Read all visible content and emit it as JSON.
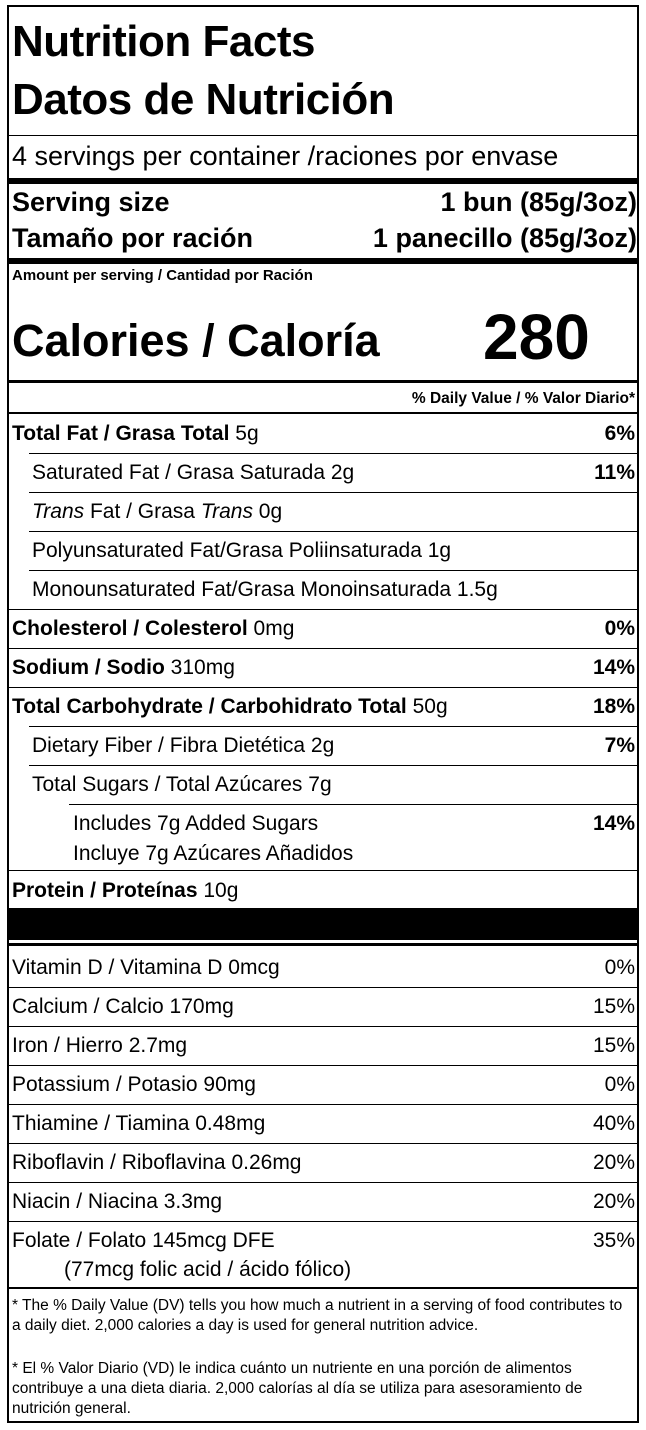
{
  "title_en": "Nutrition Facts",
  "title_es": "Datos de Nutrición",
  "servings": "4 servings per container /raciones por envase",
  "serving_size": {
    "label_en": "Serving size",
    "value_en": "1 bun (85g/3oz)",
    "label_es": "Tamaño por ración",
    "value_es": "1 panecillo (85g/3oz)"
  },
  "amount_per_serving": "Amount per serving / Cantidad por Ración",
  "calories": {
    "label": "Calories / Caloría",
    "value": "280"
  },
  "dv_header": "% Daily Value / % Valor  Diario*",
  "nutrients": {
    "total_fat": {
      "label": "Total Fat / Grasa Total",
      "amount": " 5g",
      "pct": "6%"
    },
    "saturated_fat": {
      "label": "Saturated Fat / Grasa Saturada 2g",
      "pct": "11%"
    },
    "trans_fat": {
      "trans1": "Trans",
      "mid": " Fat / Grasa ",
      "trans2": "Trans",
      "amount": " 0g"
    },
    "poly_fat": {
      "label": "Polyunsaturated Fat/Grasa Poliinsaturada 1g"
    },
    "mono_fat": {
      "label": "Monounsaturated Fat/Grasa Monoinsaturada 1.5g"
    },
    "cholesterol": {
      "label": "Cholesterol / Colesterol",
      "amount": " 0mg",
      "pct": "0%"
    },
    "sodium": {
      "label": "Sodium / Sodio",
      "amount": " 310mg",
      "pct": "14%"
    },
    "total_carb": {
      "label": "Total Carbohydrate / Carbohidrato Total",
      "amount": " 50g",
      "pct": "18%"
    },
    "fiber": {
      "label": "Dietary Fiber / Fibra Dietética 2g",
      "pct": "7%"
    },
    "total_sugars": {
      "label": "Total Sugars / Total Azúcares 7g"
    },
    "added_sugars": {
      "line1": "Includes 7g Added Sugars",
      "line2": "Incluye 7g Azúcares Añadidos",
      "pct": "14%"
    },
    "protein": {
      "label": "Protein / Proteínas",
      "amount": " 10g"
    }
  },
  "vitamins": [
    {
      "label": "Vitamin D / Vitamina D  0mcg",
      "pct": "0%"
    },
    {
      "label": "Calcium / Calcio 170mg",
      "pct": "15%"
    },
    {
      "label": "Iron / Hierro 2.7mg",
      "pct": "15%"
    },
    {
      "label": "Potassium / Potasio 90mg",
      "pct": "0%"
    },
    {
      "label": "Thiamine / Tiamina 0.48mg",
      "pct": "40%"
    },
    {
      "label": "Riboflavin / Riboflavina 0.26mg",
      "pct": "20%"
    },
    {
      "label": "Niacin / Niacina 3.3mg",
      "pct": "20%"
    }
  ],
  "folate": {
    "label": "Folate / Folato 145mcg DFE",
    "sub": "(77mcg folic acid / ácido fólico)",
    "pct": "35%"
  },
  "footnote_en": "* The % Daily Value (DV) tells you how much a nutrient in a serving of food contributes to a daily diet.  2,000 calories a day is used for general nutrition advice.",
  "footnote_es": "* El % Valor Diario (VD) le indica cuánto un nutriente en una porción de alimentos contribuye a una dieta diaria. 2,000 calorías al día se utiliza para asesoramiento de nutrición general."
}
